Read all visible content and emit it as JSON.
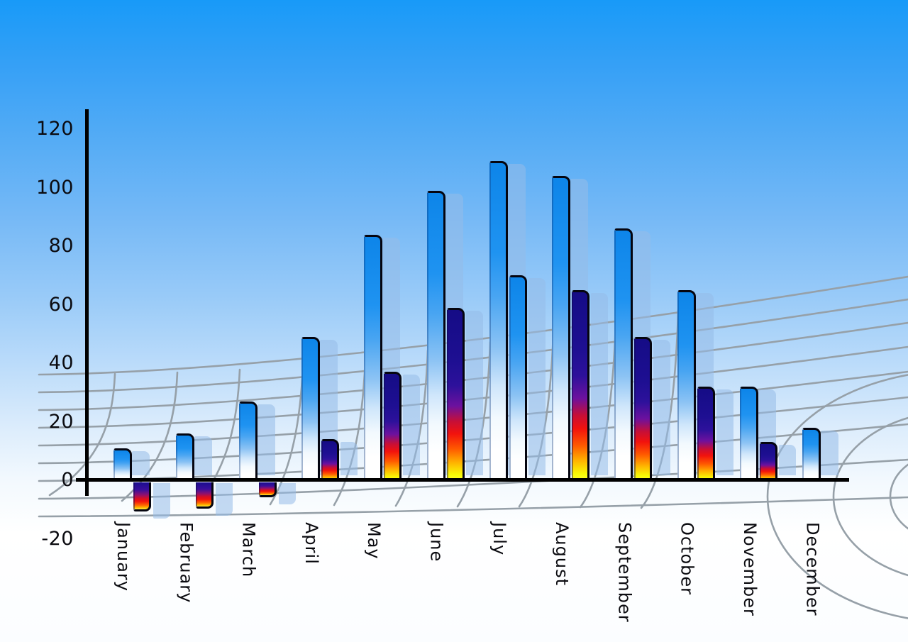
{
  "page": {
    "title": "Monthly statistics bar chart"
  },
  "chart_data": {
    "type": "bar",
    "title": "",
    "xlabel": "",
    "ylabel": "",
    "categories": [
      "January",
      "February",
      "March",
      "April",
      "May",
      "June",
      "July",
      "August",
      "September",
      "October",
      "November",
      "December"
    ],
    "series": [
      {
        "name": "primary-blue-bars",
        "style": "blue-gradient",
        "values": [
          11,
          16,
          27,
          49,
          84,
          99,
          109,
          104,
          86,
          65,
          32,
          18
        ]
      },
      {
        "name": "secondary-multicolor-bars",
        "style": "navy-red-yellow-gradient",
        "values": [
          -10,
          -9,
          -5,
          14,
          37,
          59,
          70,
          65,
          49,
          32,
          13,
          null
        ],
        "point_styles": [
          "multi",
          "multi",
          "multi",
          "multi",
          "multi",
          "multi",
          "blue",
          "multi",
          "multi",
          "multi",
          "multi",
          null
        ]
      }
    ],
    "y_axis": {
      "tick_labels": [
        "120",
        "100",
        "80",
        "60",
        "40",
        "20",
        "0",
        "-20"
      ],
      "tick_values": [
        120,
        100,
        80,
        60,
        40,
        20,
        0,
        -20
      ],
      "min": -20,
      "max": 120
    },
    "legend": "none",
    "grid": "gray curved perspective wireframe floor",
    "background": "sky-blue vertical gradient"
  },
  "colors": {
    "sky_top": "#189af8",
    "axis": "#000000",
    "grid_line": "#96a0a8",
    "blue_bar_top": "#0d85e9",
    "multicolor_bar_stops": [
      "#150c86",
      "#f2120d",
      "#ffff3a"
    ],
    "bar_shadow": "rgba(150,188,232,0.55)",
    "label_text": "#0b0b10"
  }
}
